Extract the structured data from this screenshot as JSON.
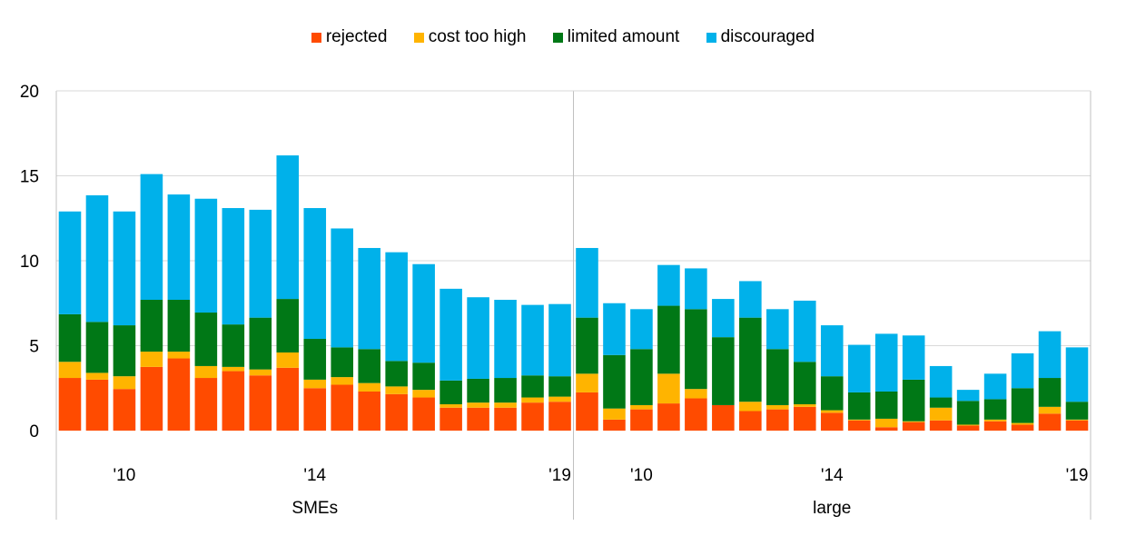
{
  "legend": [
    {
      "label": "rejected",
      "color": "#ff4b00"
    },
    {
      "label": "cost too high",
      "color": "#ffb400"
    },
    {
      "label": "limited amount",
      "color": "#007816"
    },
    {
      "label": "discouraged",
      "color": "#00b1ea"
    }
  ],
  "chart_data": {
    "type": "bar",
    "stacked": true,
    "ylim": [
      0,
      20
    ],
    "yticks": [
      0,
      5,
      10,
      15,
      20
    ],
    "grid": true,
    "legend_position": "top-center",
    "groups": [
      {
        "name": "SMEs",
        "year_ticks": [
          {
            "label": "'10",
            "index": 2
          },
          {
            "label": "'14",
            "index": 9
          },
          {
            "label": "'19",
            "index": 18
          }
        ],
        "series": [
          {
            "name": "rejected",
            "values": [
              3.1,
              3.0,
              2.45,
              3.75,
              4.25,
              3.1,
              3.5,
              3.25,
              3.7,
              2.5,
              2.7,
              2.3,
              2.15,
              1.95,
              1.35,
              1.35,
              1.35,
              1.65,
              1.7
            ]
          },
          {
            "name": "cost too high",
            "values": [
              0.95,
              0.4,
              0.75,
              0.9,
              0.4,
              0.7,
              0.25,
              0.35,
              0.9,
              0.5,
              0.45,
              0.5,
              0.45,
              0.45,
              0.2,
              0.3,
              0.3,
              0.3,
              0.3
            ]
          },
          {
            "name": "limited amount",
            "values": [
              2.8,
              3.0,
              3.0,
              3.05,
              3.05,
              3.15,
              2.5,
              3.05,
              3.15,
              2.4,
              1.75,
              2.0,
              1.5,
              1.6,
              1.4,
              1.4,
              1.45,
              1.3,
              1.2
            ]
          },
          {
            "name": "discouraged",
            "values": [
              6.05,
              7.45,
              6.7,
              7.4,
              6.2,
              6.7,
              6.85,
              6.35,
              8.45,
              7.7,
              7.0,
              5.95,
              6.4,
              5.8,
              5.4,
              4.8,
              4.6,
              4.15,
              4.25
            ]
          }
        ]
      },
      {
        "name": "large",
        "year_ticks": [
          {
            "label": "'10",
            "index": 2
          },
          {
            "label": "'14",
            "index": 9
          },
          {
            "label": "'19",
            "index": 18
          }
        ],
        "series": [
          {
            "name": "rejected",
            "values": [
              2.25,
              0.65,
              1.25,
              1.6,
              1.9,
              1.5,
              1.15,
              1.25,
              1.4,
              1.05,
              0.6,
              0.2,
              0.5,
              0.6,
              0.3,
              0.55,
              0.35,
              1.0,
              0.6
            ]
          },
          {
            "name": "cost too high",
            "values": [
              1.1,
              0.65,
              0.25,
              1.75,
              0.55,
              0.0,
              0.55,
              0.25,
              0.15,
              0.15,
              0.05,
              0.5,
              0.05,
              0.75,
              0.05,
              0.1,
              0.1,
              0.4,
              0.05
            ]
          },
          {
            "name": "limited amount",
            "values": [
              3.3,
              3.15,
              3.3,
              4.0,
              4.7,
              4.0,
              4.95,
              3.3,
              2.5,
              2.0,
              1.6,
              1.6,
              2.45,
              0.6,
              1.4,
              1.2,
              2.05,
              1.7,
              1.05
            ]
          },
          {
            "name": "discouraged",
            "values": [
              4.1,
              3.05,
              2.35,
              2.4,
              2.4,
              2.25,
              2.15,
              2.35,
              3.6,
              3.0,
              2.8,
              3.4,
              2.6,
              1.85,
              0.65,
              1.5,
              2.05,
              2.75,
              3.2
            ]
          }
        ]
      }
    ]
  }
}
